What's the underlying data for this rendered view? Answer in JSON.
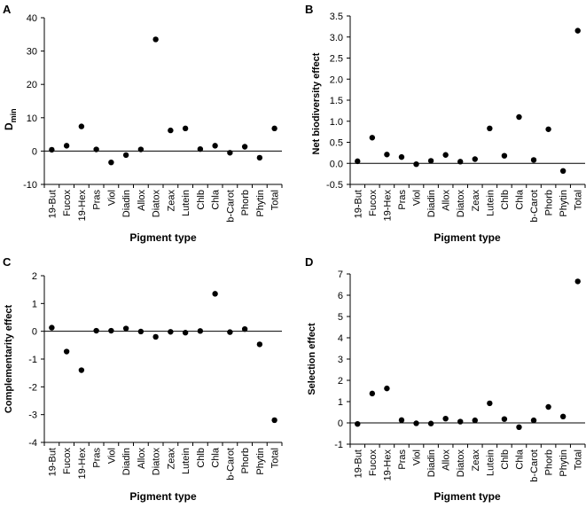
{
  "chart_data": [
    {
      "panel": "A",
      "type": "scatter",
      "categories": [
        "19-But",
        "Fucox",
        "19-Hex",
        "Pras",
        "Viol",
        "Diadin",
        "Allox",
        "Diatox",
        "Zeax",
        "Lutein",
        "Chlb",
        "Chla",
        "b-Carot",
        "Phorb",
        "Phytin",
        "Total"
      ],
      "values": [
        0.4,
        1.6,
        7.4,
        0.5,
        -3.4,
        -1.2,
        0.5,
        33.5,
        6.2,
        6.8,
        0.6,
        1.6,
        -0.5,
        1.3,
        -2.0,
        6.8
      ],
      "ylabel": "D",
      "ylabel_sub": "min",
      "xlabel": "Pigment type",
      "ylim": [
        -10,
        40
      ],
      "yticks": [
        "-10",
        "0",
        "10",
        "20",
        "30",
        "40"
      ],
      "zero_line": true
    },
    {
      "panel": "B",
      "type": "scatter",
      "categories": [
        "19-But",
        "Fucox",
        "19-Hex",
        "Pras",
        "Viol",
        "Diadin",
        "Allox",
        "Diatox",
        "Zeax",
        "Lutein",
        "Chlb",
        "Chla",
        "b-Carot",
        "Phorb",
        "Phytin",
        "Total"
      ],
      "values": [
        0.05,
        0.61,
        0.21,
        0.15,
        -0.02,
        0.06,
        0.2,
        0.04,
        0.1,
        0.83,
        0.18,
        1.1,
        0.08,
        0.81,
        -0.18,
        3.15
      ],
      "ylabel": "Net biodiversity effect",
      "xlabel": "Pigment type",
      "ylim": [
        -0.5,
        3.5
      ],
      "yticks": [
        "-0.5",
        "0.0",
        "0.5",
        "1.0",
        "1.5",
        "2.0",
        "2.5",
        "3.0",
        "3.5"
      ],
      "zero_line": true
    },
    {
      "panel": "C",
      "type": "scatter",
      "categories": [
        "19-But",
        "Fucox",
        "19-Hex",
        "Pras",
        "Viol",
        "Diadin",
        "Allox",
        "Diatox",
        "Zeax",
        "Lutein",
        "Chlb",
        "Chla",
        "b-Carot",
        "Phorb",
        "Phytin",
        "Total"
      ],
      "values": [
        0.13,
        -0.73,
        -1.4,
        0.02,
        0.02,
        0.1,
        -0.01,
        -0.2,
        -0.02,
        -0.05,
        0.01,
        1.35,
        -0.03,
        0.08,
        -0.47,
        -3.2
      ],
      "ylabel": "Complementarity effect",
      "xlabel": "Pigment type",
      "ylim": [
        -4,
        2
      ],
      "yticks": [
        "-4",
        "-3",
        "-2",
        "-1",
        "0",
        "1",
        "2"
      ],
      "zero_line": true
    },
    {
      "panel": "D",
      "type": "scatter",
      "categories": [
        "19-But",
        "Fucox",
        "19-Hex",
        "Pras",
        "Viol",
        "Diadin",
        "Allox",
        "Diatox",
        "Zeax",
        "Lutein",
        "Chlb",
        "Chla",
        "b-Carot",
        "Phorb",
        "Phytin",
        "Total"
      ],
      "values": [
        -0.05,
        1.38,
        1.62,
        0.13,
        -0.02,
        -0.03,
        0.2,
        0.06,
        0.12,
        0.92,
        0.18,
        -0.2,
        0.12,
        0.75,
        0.3,
        6.65
      ],
      "ylabel": "Selection effect",
      "xlabel": "Pigment type",
      "ylim": [
        -1,
        7
      ],
      "yticks": [
        "-1",
        "0",
        "1",
        "2",
        "3",
        "4",
        "5",
        "6",
        "7"
      ],
      "zero_line": true
    }
  ],
  "colors": {
    "marker": "#000000",
    "axis": "#000000",
    "zero_line": "#000000"
  }
}
